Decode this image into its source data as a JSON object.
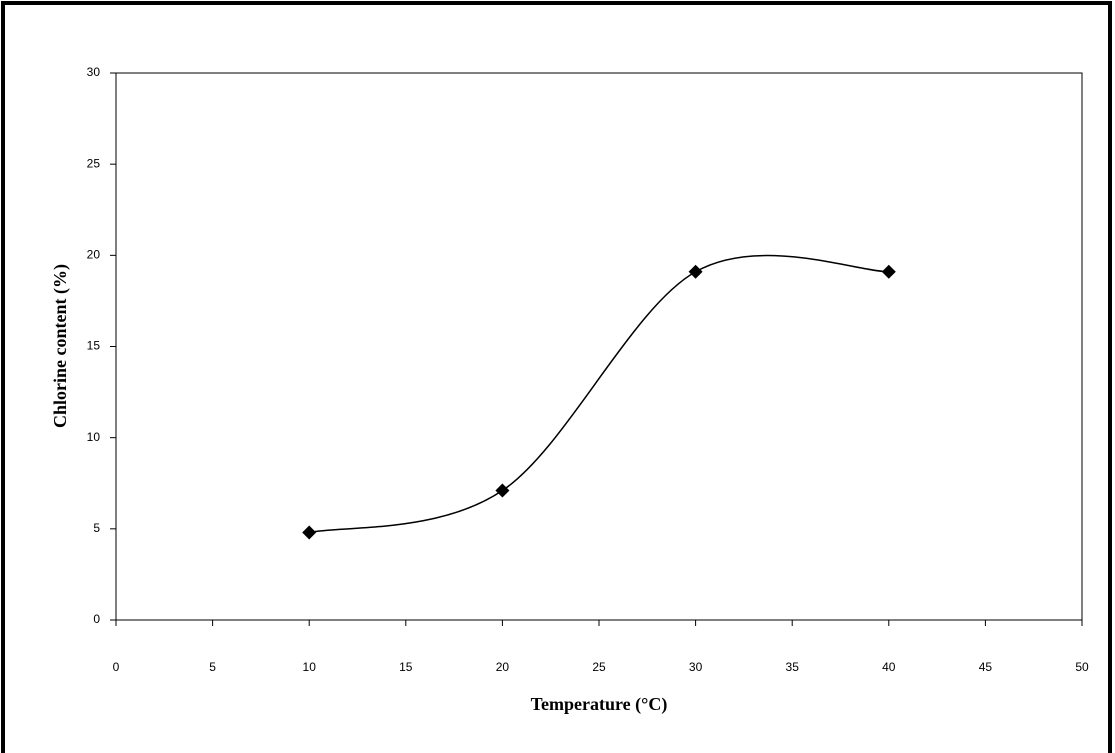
{
  "chart_data": {
    "type": "line",
    "smooth": true,
    "markers": "diamond",
    "color": "#000000",
    "x_label": "Temperature (°C)",
    "y_label": "Chlorine content (%)",
    "x": [
      10,
      20,
      30,
      40
    ],
    "values": [
      4.8,
      7.1,
      19.1,
      19.1
    ],
    "xlim": [
      0,
      50
    ],
    "xticks": [
      0,
      5,
      10,
      15,
      20,
      25,
      30,
      35,
      40,
      45,
      50
    ],
    "ylim": [
      0,
      30
    ],
    "yticks": [
      0,
      5,
      10,
      15,
      20,
      25,
      30
    ],
    "grid": false
  }
}
